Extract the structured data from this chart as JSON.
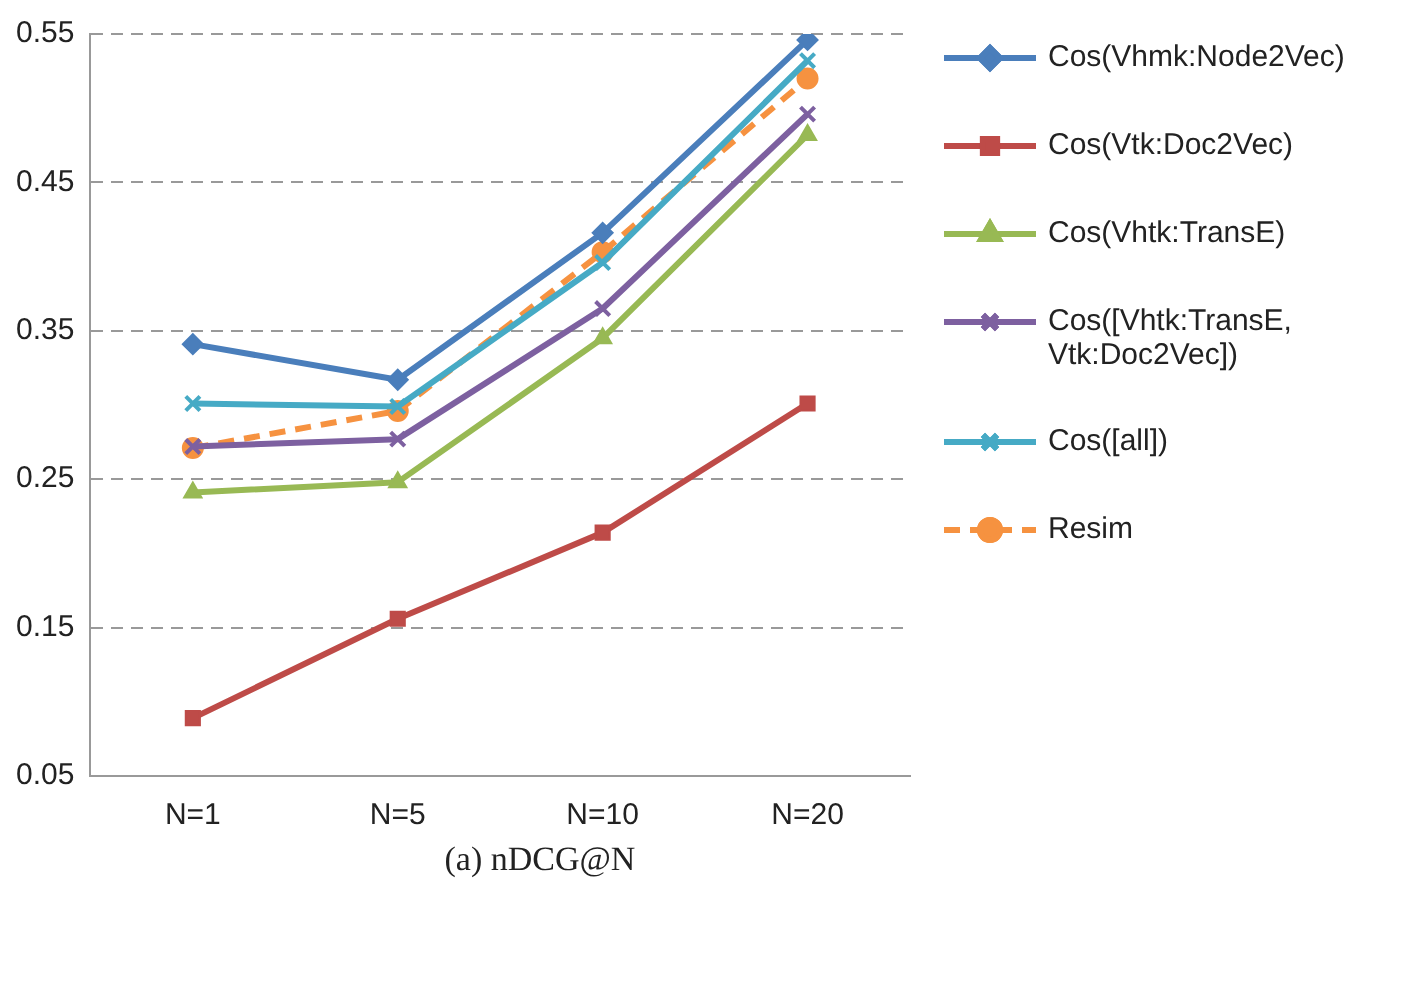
{
  "chart_data": {
    "type": "line",
    "categories": [
      "N=1",
      "N=5",
      "N=10",
      "N=20"
    ],
    "series": [
      {
        "name": "Cos(Vhmk:Node2Vec)",
        "color": "#4a7ebb",
        "marker": "diamond",
        "values": [
          0.341,
          0.317,
          0.416,
          0.546
        ]
      },
      {
        "name": "Cos(Vtk:Doc2Vec)",
        "color": "#be4b48",
        "marker": "square",
        "values": [
          0.089,
          0.156,
          0.214,
          0.301
        ]
      },
      {
        "name": "Cos(Vhtk:TransE)",
        "color": "#98b954",
        "marker": "triangle",
        "values": [
          0.241,
          0.248,
          0.345,
          0.482
        ]
      },
      {
        "name": "Cos([Vhtk:TransE, Vtk:Doc2Vec])",
        "color": "#7d60a0",
        "marker": "cross",
        "values": [
          0.272,
          0.277,
          0.365,
          0.496
        ]
      },
      {
        "name": "Cos([all])",
        "color": "#46aac5",
        "marker": "cross",
        "values": [
          0.301,
          0.299,
          0.396,
          0.532
        ]
      },
      {
        "name": "Resim",
        "color": "#f69240",
        "marker": "circle",
        "line_style": "dashed",
        "values": [
          0.271,
          0.296,
          0.403,
          0.52
        ]
      }
    ],
    "ylim": [
      0.05,
      0.55
    ],
    "yticks": [
      0.05,
      0.15,
      0.25,
      0.35,
      0.45,
      0.55
    ],
    "grid": "y",
    "legend": "right",
    "annotations": [
      "(a) nDCG@N"
    ]
  }
}
